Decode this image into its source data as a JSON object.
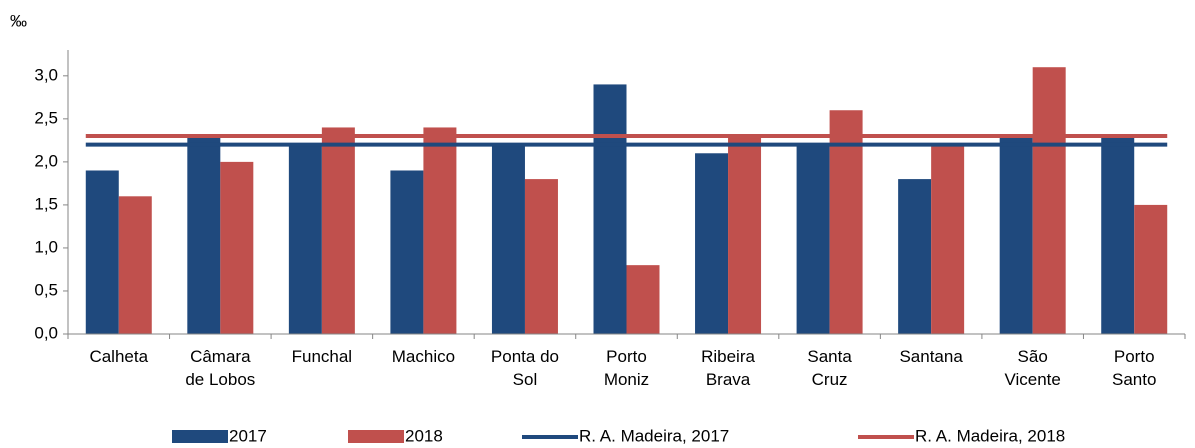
{
  "chart_data": {
    "type": "bar",
    "y_label": "‰",
    "categories": [
      "Calheta",
      "Câmara de Lobos",
      "Funchal",
      "Machico",
      "Ponta do Sol",
      "Porto Moniz",
      "Ribeira Brava",
      "Santa Cruz",
      "Santana",
      "São Vicente",
      "Porto Santo"
    ],
    "series": [
      {
        "name": "2017",
        "color": "#1f497d",
        "values": [
          1.9,
          2.3,
          2.2,
          1.9,
          2.2,
          2.9,
          2.1,
          2.2,
          1.8,
          2.3,
          2.3
        ]
      },
      {
        "name": "2018",
        "color": "#c0504d",
        "values": [
          1.6,
          2.0,
          2.4,
          2.4,
          1.8,
          0.8,
          2.3,
          2.6,
          2.2,
          3.1,
          1.5
        ]
      },
      {
        "name": "R. A. Madeira, 2017",
        "color": "#1f497d",
        "type": "line",
        "values": [
          2.2,
          2.2,
          2.2,
          2.2,
          2.2,
          2.2,
          2.2,
          2.2,
          2.2,
          2.2,
          2.2
        ]
      },
      {
        "name": "R. A. Madeira, 2018",
        "color": "#c0504d",
        "type": "line",
        "values": [
          2.3,
          2.3,
          2.3,
          2.3,
          2.3,
          2.3,
          2.3,
          2.3,
          2.3,
          2.3,
          2.3
        ]
      }
    ],
    "ylim": [
      0,
      3.3
    ],
    "yticks": [
      {
        "value": 0,
        "label": "0,0"
      },
      {
        "value": 0.5,
        "label": "0,5"
      },
      {
        "value": 1,
        "label": "1,0"
      },
      {
        "value": 1.5,
        "label": "1,5"
      },
      {
        "value": 2,
        "label": "2,0"
      },
      {
        "value": 2.5,
        "label": "2,5"
      },
      {
        "value": 3,
        "label": "3,0"
      }
    ],
    "grid": false
  }
}
